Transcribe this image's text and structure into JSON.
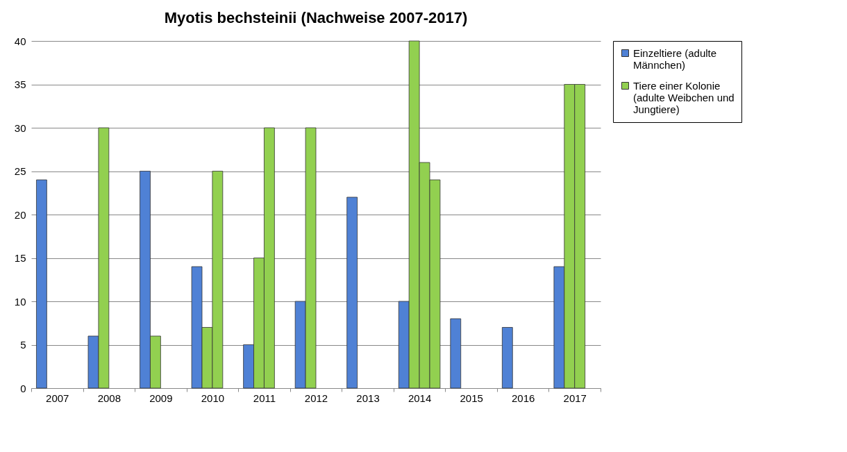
{
  "chart_data": {
    "type": "bar",
    "title": "Myotis bechsteinii (Nachweise 2007-2017)",
    "categories": [
      "2007",
      "2008",
      "2009",
      "2010",
      "2011",
      "2012",
      "2013",
      "2014",
      "2015",
      "2016",
      "2017"
    ],
    "series": [
      {
        "name": "Einzeltiere (adulte Männchen)",
        "color": "#4f81d5",
        "values": [
          24,
          6,
          25,
          14,
          5,
          10,
          22,
          10,
          8,
          7,
          14
        ]
      },
      {
        "name": "Tiere einer Kolonie (adulte Weibchen und Jungtiere)",
        "color": "#92d050",
        "values": [
          null,
          30,
          6,
          7,
          15,
          30,
          null,
          40,
          null,
          null,
          35
        ]
      },
      {
        "color": "#92d050",
        "values": [
          null,
          null,
          null,
          25,
          30,
          null,
          null,
          26,
          null,
          null,
          35
        ]
      },
      {
        "color": "#92d050",
        "values": [
          null,
          null,
          null,
          null,
          null,
          null,
          null,
          24,
          null,
          null,
          null
        ]
      }
    ],
    "ylim": [
      0,
      40
    ],
    "yticks": [
      0,
      5,
      10,
      15,
      20,
      25,
      30,
      35,
      40
    ],
    "grid": "y",
    "legend": "right"
  }
}
